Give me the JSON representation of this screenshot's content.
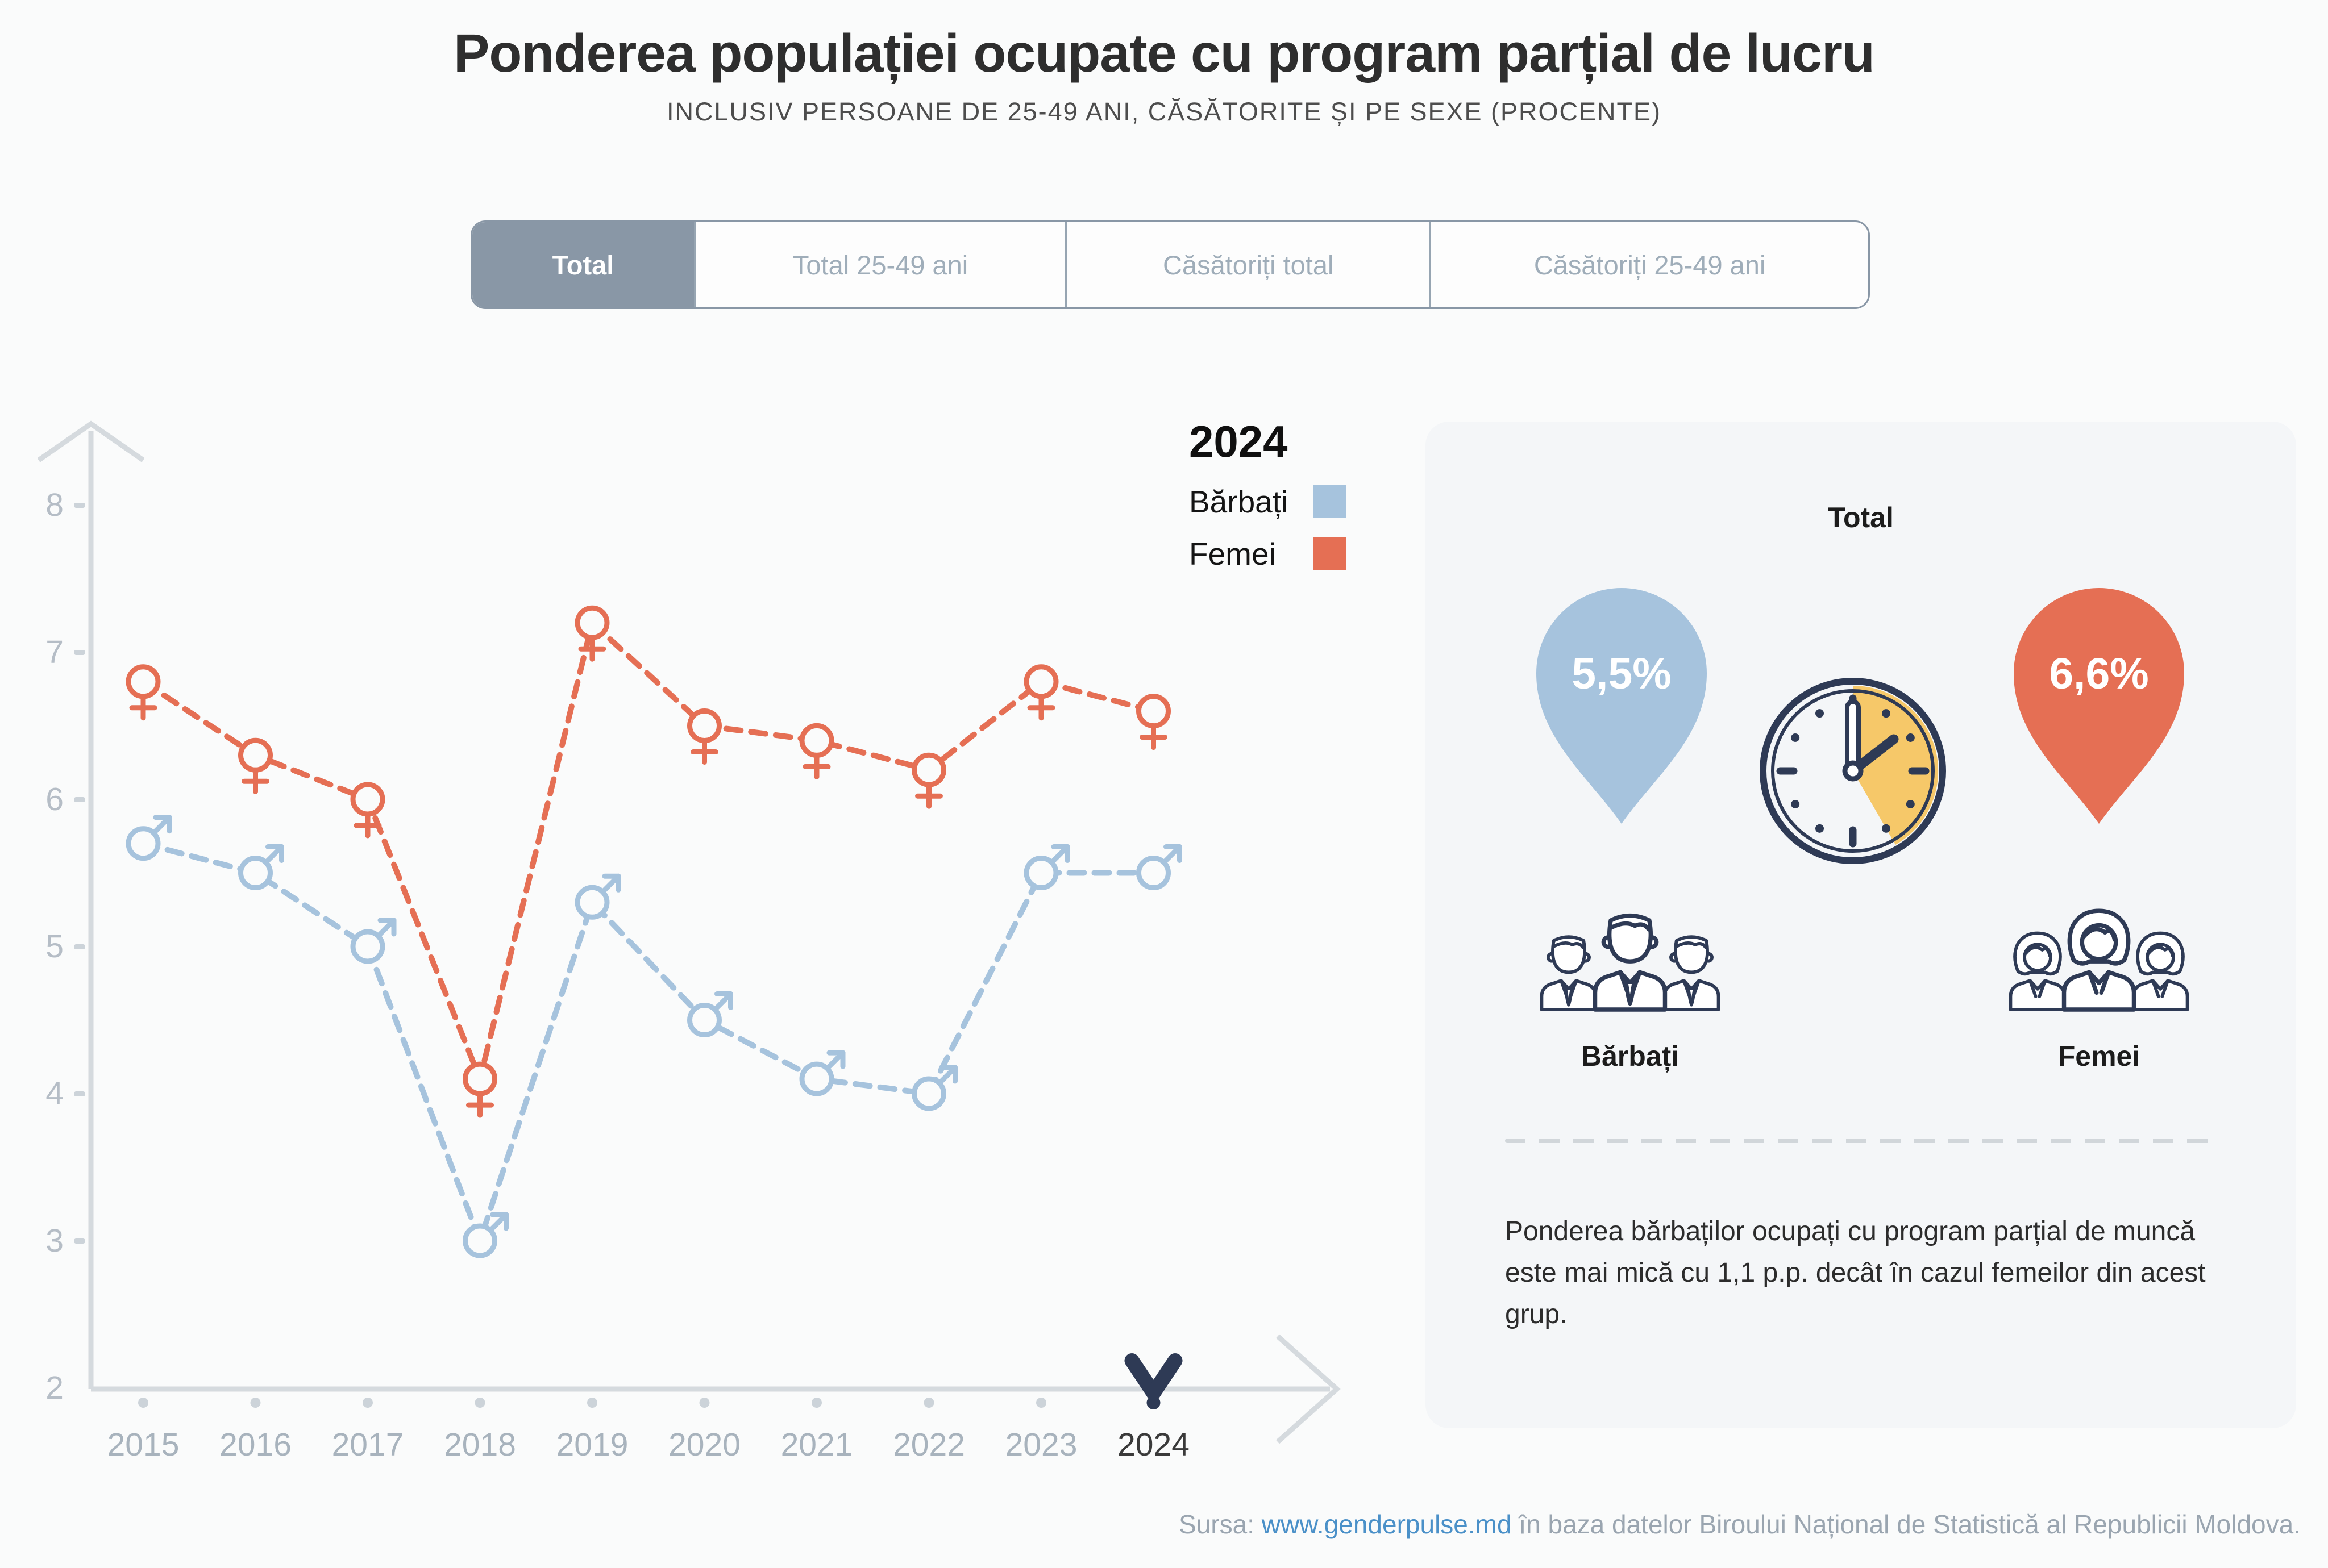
{
  "header": {
    "title": "Ponderea populației ocupate cu program parțial de lucru",
    "subtitle": "INCLUSIV PERSOANE DE 25-49 ANI, CĂSĂTORITE ȘI PE SEXE (PROCENTE)"
  },
  "tabs": [
    {
      "label": "Total",
      "active": true
    },
    {
      "label": "Total 25-49 ani",
      "active": false
    },
    {
      "label": "Căsătoriți total",
      "active": false
    },
    {
      "label": "Căsătoriți 25-49 ani",
      "active": false
    }
  ],
  "legend": {
    "year": "2024",
    "male_label": "Bărbați",
    "female_label": "Femei"
  },
  "chart_data": {
    "type": "line",
    "x": [
      "2015",
      "2016",
      "2017",
      "2018",
      "2019",
      "2020",
      "2021",
      "2022",
      "2023",
      "2024"
    ],
    "series": [
      {
        "name": "Bărbați",
        "marker": "male",
        "color": "#a6c3dd",
        "values": [
          5.7,
          5.5,
          5.0,
          3.0,
          5.3,
          4.5,
          4.1,
          4.0,
          5.5,
          5.5
        ]
      },
      {
        "name": "Femei",
        "marker": "female",
        "color": "#e56f54",
        "values": [
          6.8,
          6.3,
          6.0,
          4.1,
          7.2,
          6.5,
          6.4,
          6.2,
          6.8,
          6.6
        ]
      }
    ],
    "ylabel": "",
    "xlabel": "",
    "ylim": [
      2,
      8
    ],
    "yticks": [
      8,
      7,
      6,
      5,
      4,
      3,
      2
    ],
    "grid": false,
    "line_style": "dashed",
    "legend_position": "top-right",
    "highlight_year": "2024"
  },
  "panel": {
    "heading": "Total",
    "male_value": "5,5%",
    "female_value": "6,6%",
    "male_label": "Bărbați",
    "female_label": "Femei",
    "note": "Ponderea bărbaților ocupați cu program parțial de muncă este mai mică cu 1,1 p.p. decât în cazul femeilor din acest grup."
  },
  "footer": {
    "prefix": "Sursa: ",
    "link": "www.genderpulse.md",
    "suffix": " în baza datelor Biroului Național de Statistică al Republicii Moldova."
  },
  "colors": {
    "male": "#a6c3dd",
    "female": "#e56f54",
    "navy": "#2e3a55",
    "wedge_yellow": "#f6c869",
    "axis": "#d5dade",
    "tick_label": "#b5bdc6",
    "year_label": "#a8b3bd",
    "year_active": "#3a3a3a",
    "dot": "#ccd3d9",
    "tab_active_bg": "#8997a6",
    "panel_bg": "#f4f6f8",
    "link": "#4a90c8"
  }
}
